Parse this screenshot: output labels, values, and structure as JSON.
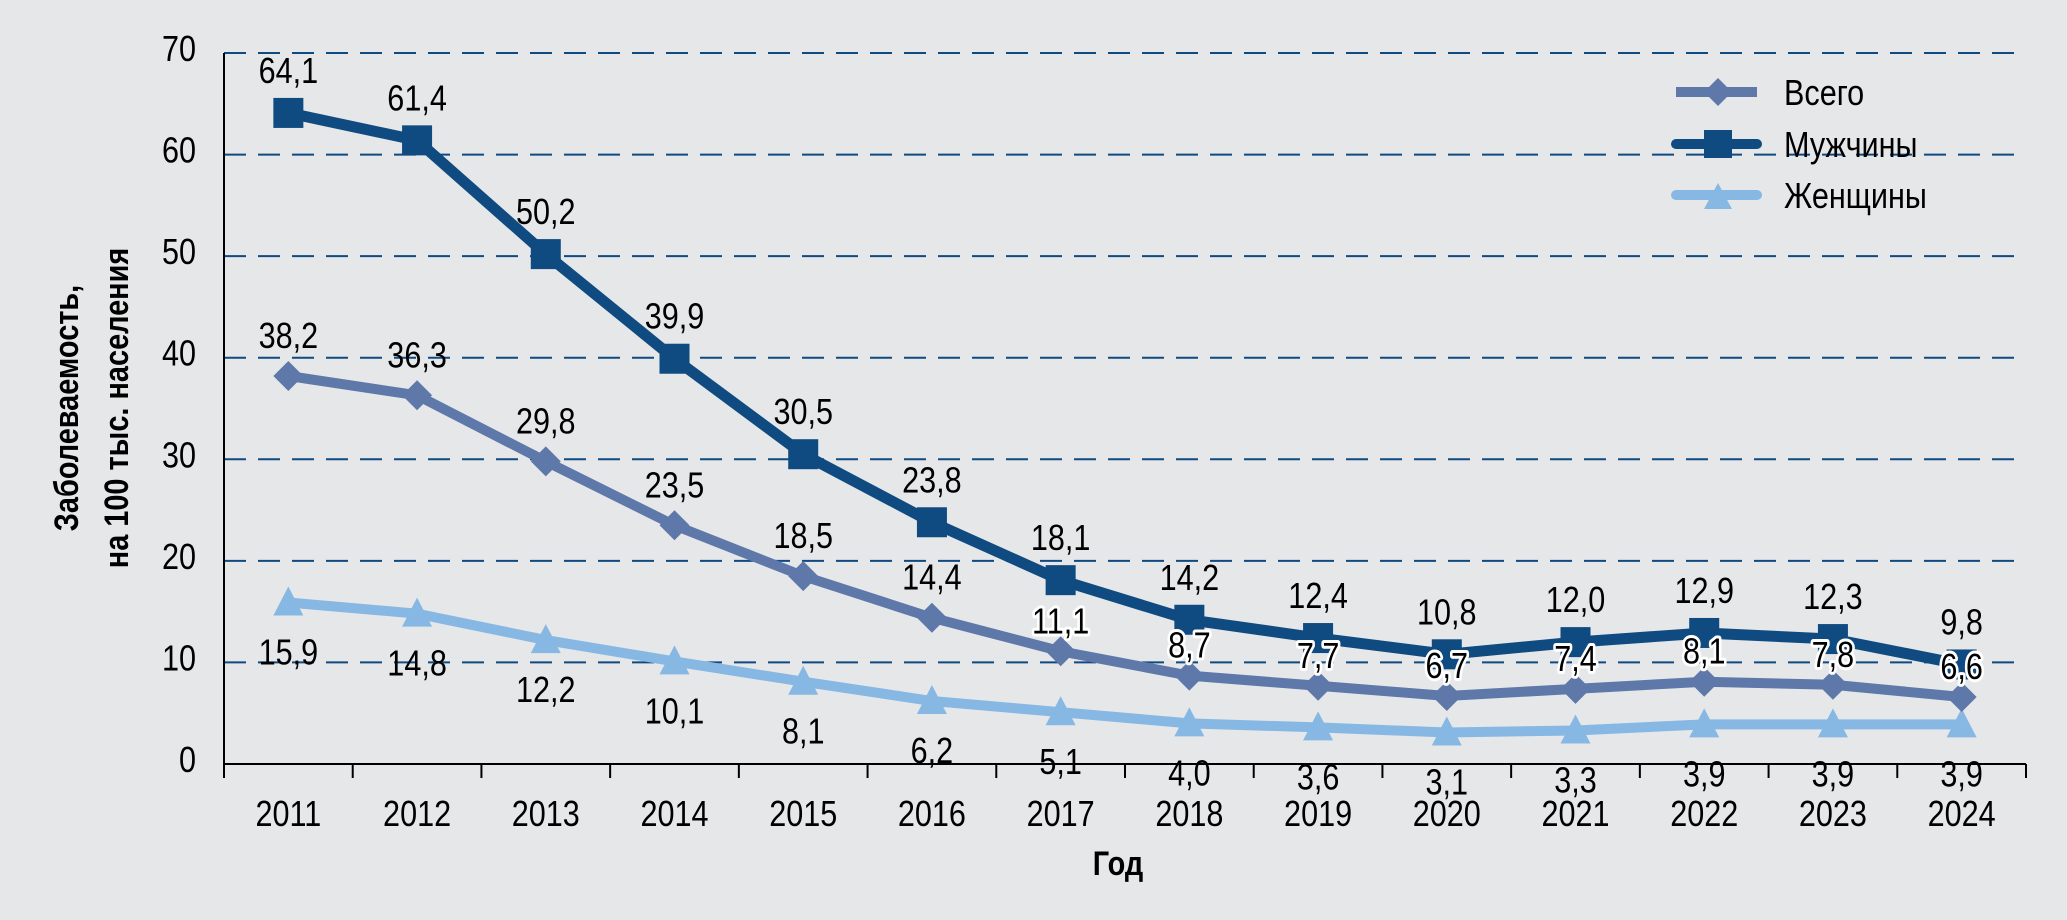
{
  "chart_data": {
    "type": "line",
    "title": "",
    "xlabel": "Год",
    "ylabel_lines": [
      "Заболеваемость,",
      "на 100 тыс. населения"
    ],
    "ylabel": "Заболеваемость, на 100 тыс. населения",
    "ylim": [
      0,
      70
    ],
    "yticks": [
      0,
      10,
      20,
      30,
      40,
      50,
      60,
      70
    ],
    "ytick_labels": [
      "0",
      "10",
      "20",
      "30",
      "40",
      "50",
      "60",
      "70"
    ],
    "grid": true,
    "legend_position": "top-right",
    "categories": [
      "2011",
      "2012",
      "2013",
      "2014",
      "2015",
      "2016",
      "2017",
      "2018",
      "2019",
      "2020",
      "2021",
      "2022",
      "2023",
      "2024"
    ],
    "series": [
      {
        "name": "Всего",
        "marker": "diamond",
        "color": "#5e78a9",
        "values": [
          38.2,
          36.3,
          29.8,
          23.5,
          18.5,
          14.4,
          11.1,
          8.7,
          7.7,
          6.7,
          7.4,
          8.1,
          7.8,
          6.6
        ],
        "labels": [
          "38,2",
          "36,3",
          "29,8",
          "23,5",
          "18,5",
          "14,4",
          "11,1",
          "8,7",
          "7,7",
          "6,7",
          "7,4",
          "8,1",
          "7,8",
          "6,6"
        ]
      },
      {
        "name": "Мужчины",
        "marker": "square",
        "color": "#0f4a80",
        "values": [
          64.1,
          61.4,
          50.2,
          39.9,
          30.5,
          23.8,
          18.1,
          14.2,
          12.4,
          10.8,
          12.0,
          12.9,
          12.3,
          9.8
        ],
        "labels": [
          "64,1",
          "61,4",
          "50,2",
          "39,9",
          "30,5",
          "23,8",
          "18,1",
          "14,2",
          "12,4",
          "10,8",
          "12,0",
          "12,9",
          "12,3",
          "9,8"
        ]
      },
      {
        "name": "Женщины",
        "marker": "triangle",
        "color": "#86b8e3",
        "values": [
          15.9,
          14.8,
          12.2,
          10.1,
          8.1,
          6.2,
          5.1,
          4.0,
          3.6,
          3.1,
          3.3,
          3.9,
          3.9,
          3.9
        ],
        "labels": [
          "15,9",
          "14,8",
          "12,2",
          "10,1",
          "8,1",
          "6,2",
          "5,1",
          "4,0",
          "3,6",
          "3,1",
          "3,3",
          "3,9",
          "3,9",
          "3,9"
        ]
      }
    ]
  },
  "colors": {
    "background": "#e6e7e9",
    "gridline": "#0f4a80",
    "axis": "#000000"
  }
}
